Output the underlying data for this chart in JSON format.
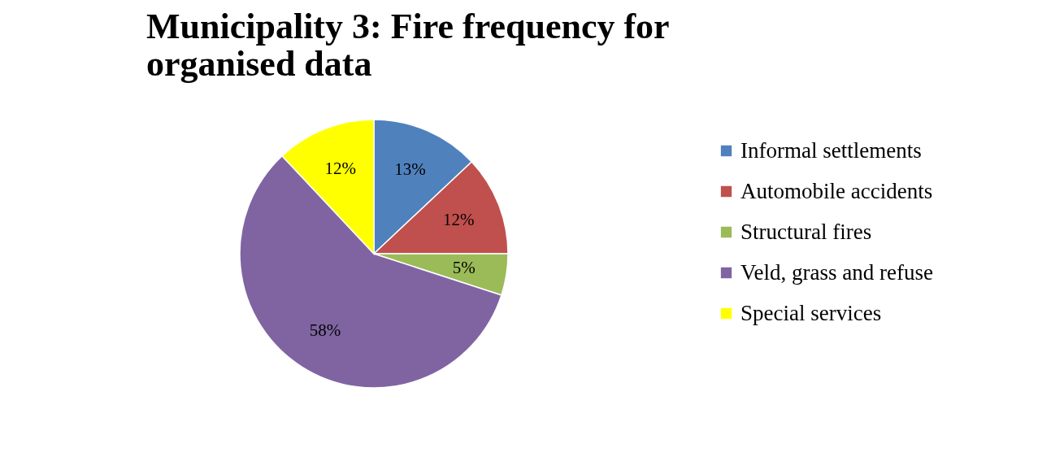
{
  "chart_data": {
    "type": "pie",
    "title": "Municipality 3: Fire frequency for organised data",
    "categories": [
      "Informal settlements",
      "Automobile accidents",
      "Structural fires",
      "Veld, grass and refuse",
      "Special services"
    ],
    "values": [
      13,
      12,
      5,
      58,
      12
    ],
    "value_labels": [
      "13%",
      "12%",
      "5%",
      "58%",
      "12%"
    ],
    "colors": [
      "#4f81bd",
      "#c0504d",
      "#9bbb59",
      "#8064a2",
      "#ffff00"
    ],
    "legend": "right"
  }
}
